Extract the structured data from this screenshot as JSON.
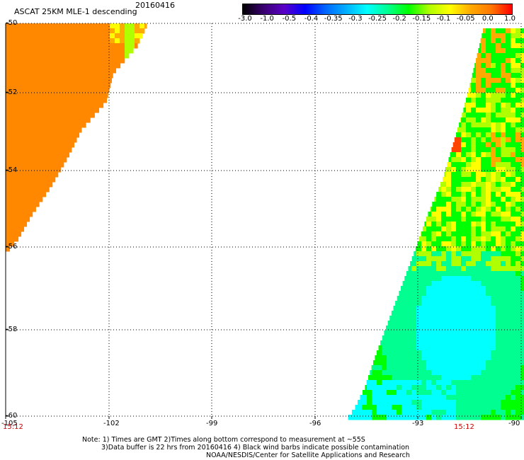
{
  "title": {
    "main": "ASCAT 25KM MLE-1 descending",
    "date": "20160416"
  },
  "colorbar": {
    "labels": [
      "-3.0",
      "-1.0",
      "-0.5",
      "-0.4",
      "-0.35",
      "-0.3",
      "-0.25",
      "-0.2",
      "-0.15",
      "-0.1",
      "-0.05",
      "0.0",
      "1.0"
    ],
    "colors": [
      "#000000",
      "#3a0070",
      "#5a00c8",
      "#0000ff",
      "#0066ff",
      "#00b0ff",
      "#00ffff",
      "#00ff90",
      "#00ff00",
      "#b0ff00",
      "#ffff00",
      "#ffaa00",
      "#ff7700",
      "#ff0000"
    ]
  },
  "map": {
    "lon_ticks": [
      "-105",
      "-102",
      "-99",
      "-96",
      "-93",
      "-90"
    ],
    "lat_ticks": [
      "-50",
      "-52",
      "-54",
      "-56",
      "-58",
      "-60"
    ],
    "lon_range": [
      -105,
      -90
    ],
    "lat_range": [
      -60,
      -50
    ],
    "grid": true,
    "colors": {
      "orange": "#ff8800",
      "light_orange": "#ffaa00",
      "yellow": "#ffff00",
      "lime": "#b0ff00",
      "green": "#00ff00",
      "spring": "#00ff90",
      "cyan": "#00ffff",
      "red": "#ff4400"
    }
  },
  "times": {
    "left": "15:12",
    "right": "15:12"
  },
  "notes": {
    "line1": "Note: 1) Times are GMT 2)Times along bottom correspond to measurement at ~55S",
    "line2": "3)Data buffer is 22 hrs from 20160416 4) Black wind barbs indicate possible contamination",
    "line3": "NOAA/NESDIS/Center for Satellite Applications and Research"
  }
}
